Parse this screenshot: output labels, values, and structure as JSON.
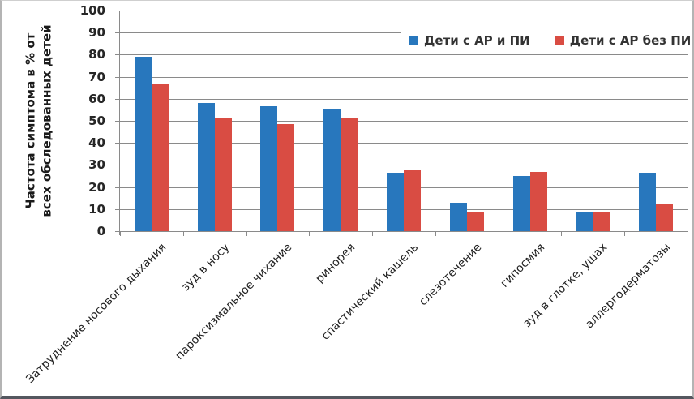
{
  "chart_data": {
    "type": "bar",
    "title": "",
    "categories": [
      "Затруднение носового дыхания",
      "зуд в носу",
      "пароксизмальное чихание",
      "ринорея",
      "спастический кашель",
      "слезотечение",
      "гипосмия",
      "зуд в глотке, ушах",
      "аллергодерматозы"
    ],
    "series": [
      {
        "name": "Дети с АР и ПИ",
        "color": "#2877BD",
        "values": [
          79,
          58,
          56.5,
          55.5,
          26.5,
          13,
          25,
          9,
          26.5
        ]
      },
      {
        "name": "Дети с АР без ПИ",
        "color": "#D94C43",
        "values": [
          66.5,
          51.5,
          48.5,
          51.5,
          27.5,
          9,
          27,
          9,
          12
        ]
      }
    ],
    "ylabel_lines": [
      "Частота симптома в % от",
      "всех обследованных детей"
    ],
    "xlabel": "",
    "ylim": [
      0,
      100
    ],
    "ytick_step": 10,
    "grid": true,
    "legend_position": "top-right"
  },
  "colors": {
    "grid": "#8a8a8a",
    "axis": "#8a8a8a",
    "tick_text": "#262626",
    "frame_bottom": "#54575f"
  }
}
